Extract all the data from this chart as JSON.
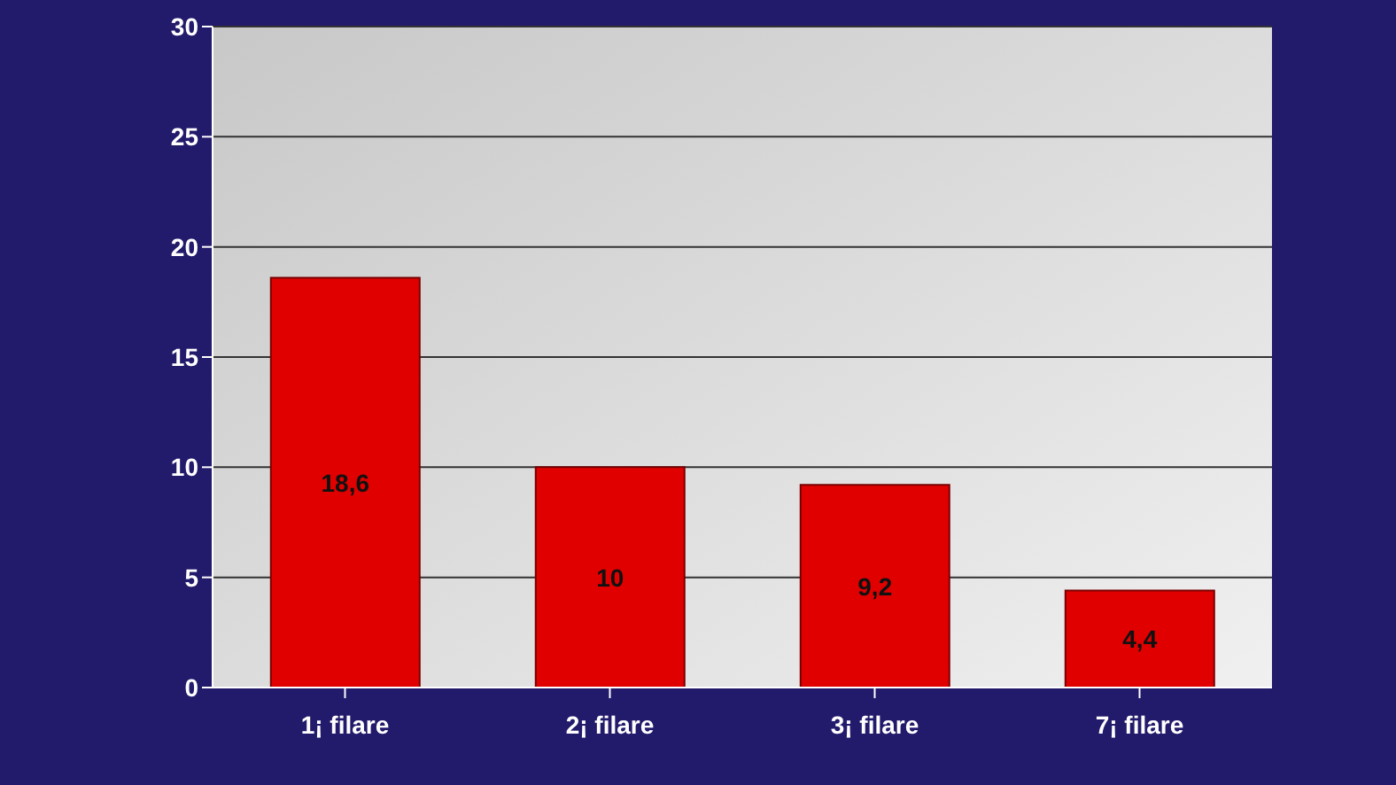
{
  "chart_data": {
    "type": "bar",
    "categories": [
      "1¡ filare",
      "2¡ filare",
      "3¡ filare",
      "7¡ filare"
    ],
    "series": [
      {
        "color": "#e00000",
        "values": [
          18.6,
          10,
          9.2,
          4.4
        ],
        "value_labels": [
          "18,6",
          "10",
          "9,2",
          "4,4"
        ]
      }
    ],
    "ylim": [
      0,
      30
    ],
    "yticks": [
      0,
      5,
      10,
      15,
      20,
      25,
      30
    ],
    "grid": "y"
  }
}
